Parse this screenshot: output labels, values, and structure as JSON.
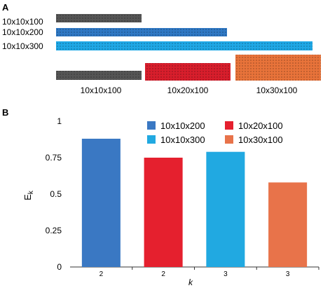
{
  "panel_a": {
    "label": "A",
    "rods": [
      {
        "label": "10x10x100",
        "color": "#555555"
      },
      {
        "label": "10x10x200",
        "color": "#2f78c4"
      },
      {
        "label": "10x10x300",
        "color": "#1fa8e6"
      }
    ],
    "blocks": [
      {
        "label": "10x10x100",
        "color": "#555555"
      },
      {
        "label": "10x20x100",
        "color": "#d81e2c"
      },
      {
        "label": "10x30x100",
        "color": "#e8733a"
      }
    ]
  },
  "panel_b": {
    "label": "B",
    "legend": [
      {
        "label": "10x10x200",
        "color": "#3a78c3"
      },
      {
        "label": "10x20x100",
        "color": "#e5202e"
      },
      {
        "label": "10x10x300",
        "color": "#21a9e1"
      },
      {
        "label": "10x30x100",
        "color": "#e8734a"
      }
    ]
  },
  "chart_data": {
    "type": "bar",
    "categories": [
      "2",
      "2",
      "3",
      "3"
    ],
    "series": [
      {
        "name": "10x10x200",
        "values": [
          0.88,
          null,
          null,
          null
        ],
        "color": "#3a78c3"
      },
      {
        "name": "10x20x100",
        "values": [
          null,
          0.75,
          null,
          null
        ],
        "color": "#e5202e"
      },
      {
        "name": "10x10x300",
        "values": [
          null,
          null,
          0.79,
          null
        ],
        "color": "#21a9e1"
      },
      {
        "name": "10x30x100",
        "values": [
          null,
          null,
          null,
          0.58
        ],
        "color": "#e8734a"
      }
    ],
    "values": [
      0.88,
      0.75,
      0.79,
      0.58
    ],
    "bar_colors": [
      "#3a78c3",
      "#e5202e",
      "#21a9e1",
      "#e8734a"
    ],
    "xlabel": "k",
    "ylabel": "Ek",
    "ylim": [
      0,
      1
    ],
    "yticks": [
      "0",
      "0.25",
      "0.5",
      "0.75",
      "1"
    ],
    "grid": false,
    "legend_position": "top-right"
  }
}
